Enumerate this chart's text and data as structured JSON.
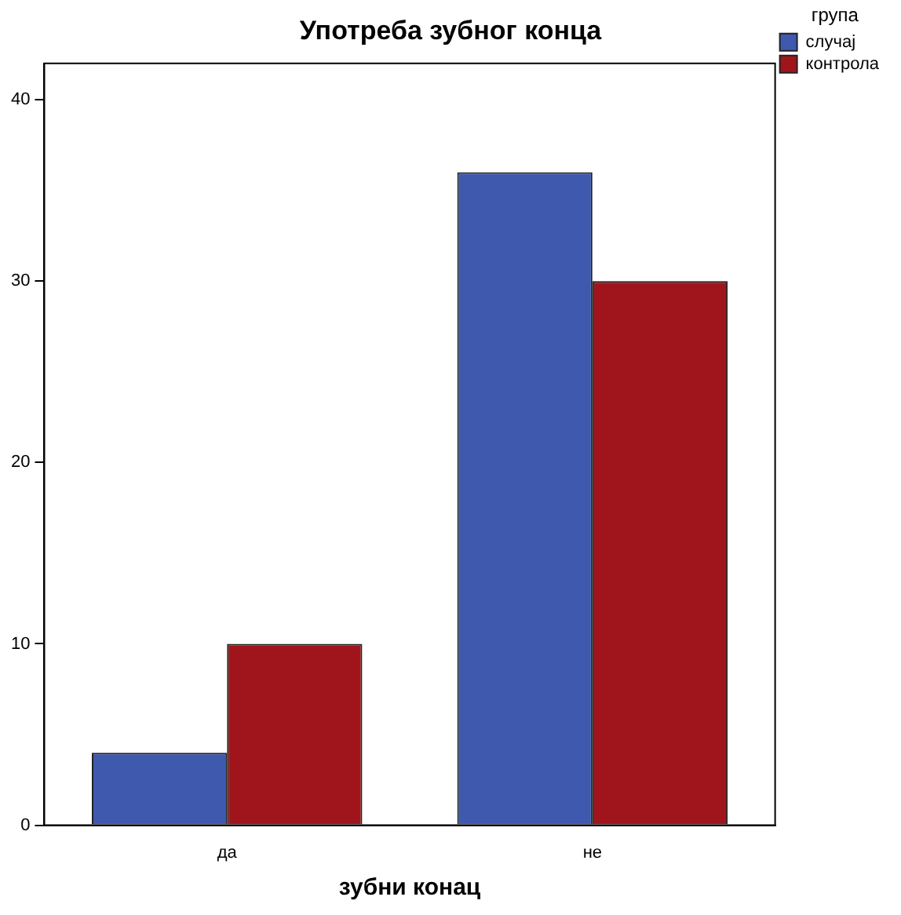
{
  "chart_data": {
    "type": "bar",
    "title": "Употреба зубног конца",
    "xlabel": "зубни конац",
    "legend_title": "група",
    "categories": [
      "да",
      "не"
    ],
    "series": [
      {
        "name": "случај",
        "color": "#3f59ae",
        "values": [
          4,
          36
        ]
      },
      {
        "name": "контрола",
        "color": "#a0151b",
        "values": [
          10,
          30
        ]
      }
    ],
    "ylim": [
      0,
      42
    ],
    "yticks": [
      0,
      10,
      20,
      30,
      40
    ],
    "grid": false,
    "legend": "top right"
  }
}
